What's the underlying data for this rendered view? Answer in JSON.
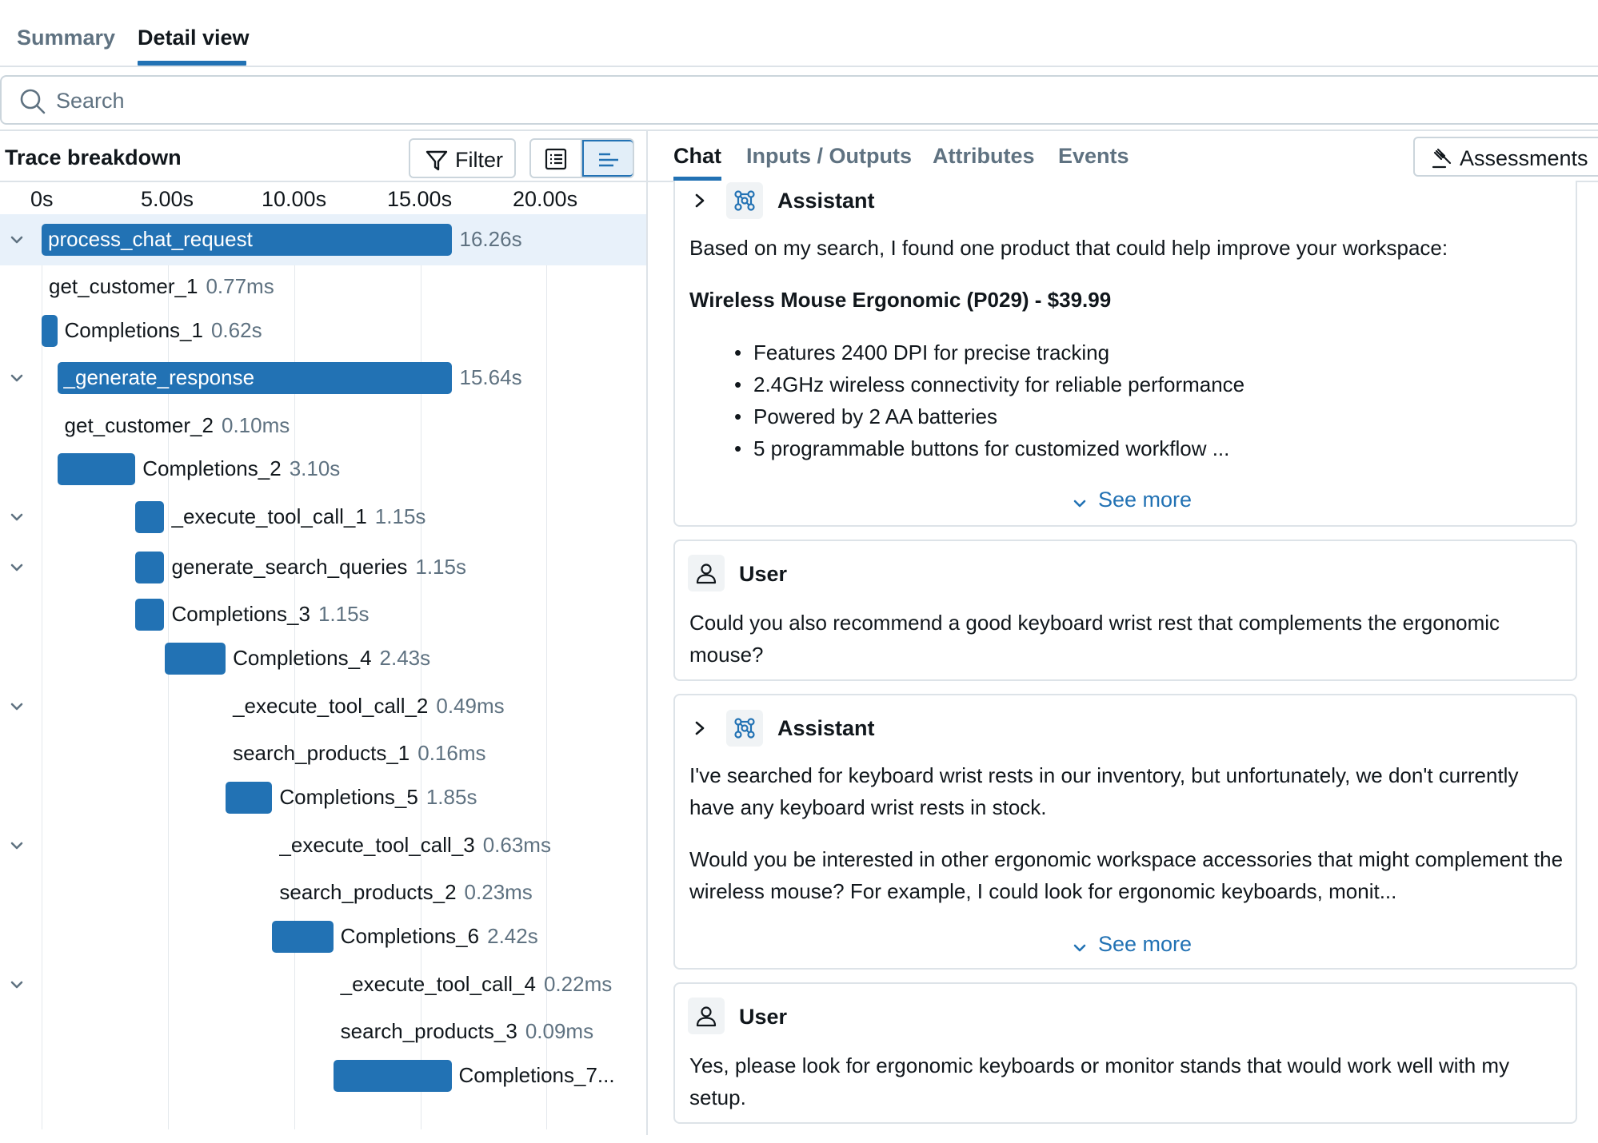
{
  "top_tabs": [
    {
      "label": "Summary"
    },
    {
      "label": "Detail view"
    }
  ],
  "search": {
    "placeholder": "Search"
  },
  "trace_panel": {
    "title": "Trace breakdown",
    "filter_label": "Filter",
    "axis_ticks": [
      "0s",
      "5.00s",
      "10.00s",
      "15.00s",
      "20.00s"
    ],
    "spans": [
      {
        "name": "process_chat_request",
        "duration": "16.26s",
        "start_s": 0.0,
        "duration_s": 16.26,
        "expandable": true,
        "label_in_bar": true
      },
      {
        "name": "get_customer_1",
        "duration": "0.77ms",
        "start_s": 0.0,
        "duration_s": 0.0,
        "expandable": false,
        "label_in_bar": false
      },
      {
        "name": "Completions_1",
        "duration": "0.62s",
        "start_s": 0.0,
        "duration_s": 0.62,
        "expandable": false,
        "label_in_bar": false
      },
      {
        "name": "_generate_response",
        "duration": "15.64s",
        "start_s": 0.62,
        "duration_s": 15.64,
        "expandable": true,
        "label_in_bar": true
      },
      {
        "name": "get_customer_2",
        "duration": "0.10ms",
        "start_s": 0.62,
        "duration_s": 0.0,
        "expandable": false,
        "label_in_bar": false
      },
      {
        "name": "Completions_2",
        "duration": "3.10s",
        "start_s": 0.62,
        "duration_s": 3.1,
        "expandable": false,
        "label_in_bar": false
      },
      {
        "name": "_execute_tool_call_1",
        "duration": "1.15s",
        "start_s": 3.72,
        "duration_s": 1.15,
        "expandable": true,
        "label_in_bar": false
      },
      {
        "name": "generate_search_queries",
        "duration": "1.15s",
        "start_s": 3.72,
        "duration_s": 1.15,
        "expandable": true,
        "label_in_bar": false
      },
      {
        "name": "Completions_3",
        "duration": "1.15s",
        "start_s": 3.72,
        "duration_s": 1.15,
        "expandable": false,
        "label_in_bar": false
      },
      {
        "name": "Completions_4",
        "duration": "2.43s",
        "start_s": 4.87,
        "duration_s": 2.43,
        "expandable": false,
        "label_in_bar": false
      },
      {
        "name": "_execute_tool_call_2",
        "duration": "0.49ms",
        "start_s": 7.3,
        "duration_s": 0.0,
        "expandable": true,
        "label_in_bar": false
      },
      {
        "name": "search_products_1",
        "duration": "0.16ms",
        "start_s": 7.3,
        "duration_s": 0.0,
        "expandable": false,
        "label_in_bar": false
      },
      {
        "name": "Completions_5",
        "duration": "1.85s",
        "start_s": 7.3,
        "duration_s": 1.85,
        "expandable": false,
        "label_in_bar": false
      },
      {
        "name": "_execute_tool_call_3",
        "duration": "0.63ms",
        "start_s": 9.15,
        "duration_s": 0.0,
        "expandable": true,
        "label_in_bar": false
      },
      {
        "name": "search_products_2",
        "duration": "0.23ms",
        "start_s": 9.15,
        "duration_s": 0.0,
        "expandable": false,
        "label_in_bar": false
      },
      {
        "name": "Completions_6",
        "duration": "2.42s",
        "start_s": 9.15,
        "duration_s": 2.42,
        "expandable": false,
        "label_in_bar": false
      },
      {
        "name": "_execute_tool_call_4",
        "duration": "0.22ms",
        "start_s": 11.57,
        "duration_s": 0.0,
        "expandable": true,
        "label_in_bar": false
      },
      {
        "name": "search_products_3",
        "duration": "0.09ms",
        "start_s": 11.57,
        "duration_s": 0.0,
        "expandable": false,
        "label_in_bar": false
      },
      {
        "name": "Completions_7...",
        "duration": "",
        "start_s": 11.57,
        "duration_s": 4.69,
        "expandable": false,
        "label_in_bar": false
      }
    ]
  },
  "detail_tabs": [
    {
      "label": "Chat"
    },
    {
      "label": "Inputs / Outputs"
    },
    {
      "label": "Attributes"
    },
    {
      "label": "Events"
    }
  ],
  "assessments_label": "Assessments",
  "chat": {
    "messages": [
      {
        "role": "Assistant",
        "text": "Based on my search, I found one product that could help improve your workspace:",
        "product_heading": "Wireless Mouse Ergonomic (P029) - $39.99",
        "bullets": [
          "Features 2400 DPI for precise tracking",
          "2.4GHz wireless connectivity for reliable performance",
          "Powered by 2 AA batteries",
          "5 programmable buttons for customized workflow ..."
        ],
        "see_more": "See more"
      },
      {
        "role": "User",
        "text": "Could you also recommend a good keyboard wrist rest that complements the ergonomic mouse?"
      },
      {
        "role": "Assistant",
        "text": "I've searched for keyboard wrist rests in our inventory, but unfortunately, we don't currently have any keyboard wrist rests in stock.",
        "text2": "Would you be interested in other ergonomic workspace accessories that might complement the wireless mouse? For example, I could look for ergonomic keyboards, monit...",
        "see_more": "See more"
      },
      {
        "role": "User",
        "text": "Yes, please look for ergonomic keyboards or monitor stands that would work well with my setup."
      }
    ]
  },
  "colors": {
    "accent": "#2272b4",
    "muted_text": "#5f7281",
    "border": "#dde3e8",
    "row_highlight": "#e8f1fa"
  }
}
